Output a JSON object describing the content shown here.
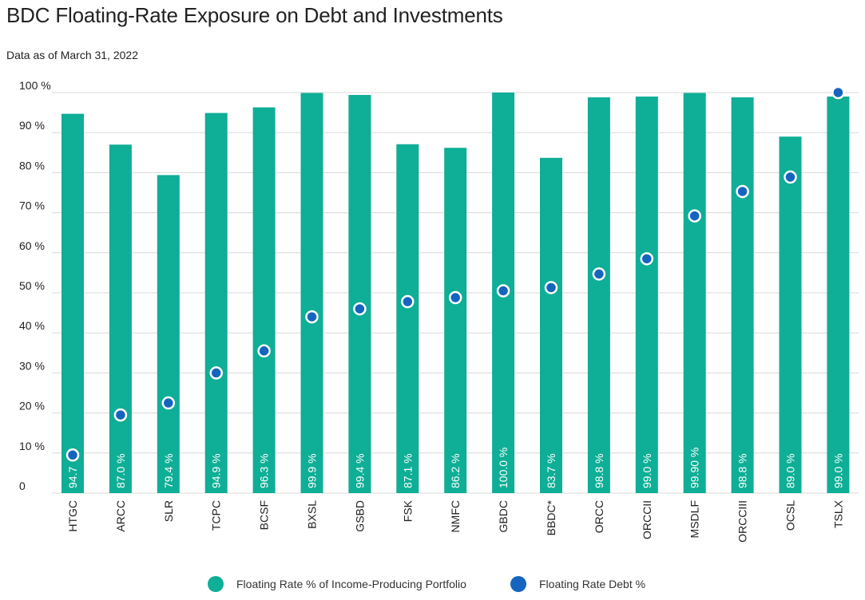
{
  "title": "BDC Floating-Rate Exposure on Debt and Investments",
  "subtitle": "Data as of March 31, 2022",
  "colors": {
    "bar": "#0fae96",
    "dot": "#1565c0",
    "grid": "#d9d9d9"
  },
  "legend": [
    {
      "label": "Floating Rate % of Income-Producing Portfolio",
      "color": "#0fae96"
    },
    {
      "label": "Floating Rate Debt %",
      "color": "#1565c0"
    }
  ],
  "chart_data": {
    "type": "bar",
    "title": "BDC Floating-Rate Exposure on Debt and Investments",
    "subtitle": "Data as of March 31, 2022",
    "categories": [
      "HTGC",
      "ARCC",
      "SLR",
      "TCPC",
      "BCSF",
      "BXSL",
      "GSBD",
      "FSK",
      "NMFC",
      "GBDC",
      "BBDC*",
      "ORCC",
      "ORCCII",
      "MSDLF",
      "ORCCIII",
      "OCSL",
      "TSLX"
    ],
    "series": [
      {
        "name": "Floating Rate % of Income-Producing Portfolio",
        "type": "bar",
        "values": [
          94.7,
          87.0,
          79.4,
          94.9,
          96.3,
          99.9,
          99.4,
          87.1,
          86.2,
          100.0,
          83.7,
          98.8,
          99.0,
          99.9,
          98.8,
          89.0,
          99.0
        ],
        "labels": [
          "94.7",
          "87.0 %",
          "79.4 %",
          "94.9 %",
          "96.3 %",
          "99.9 %",
          "99.4 %",
          "87.1 %",
          "86.2 %",
          "100.0 %",
          "83.7 %",
          "98.8 %",
          "99.0 %",
          "99.90 %",
          "98.8 %",
          "89.0 %",
          "99.0 %"
        ]
      },
      {
        "name": "Floating Rate Debt %",
        "type": "scatter",
        "values": [
          9.5,
          19.5,
          22.5,
          30.0,
          35.5,
          44.0,
          46.0,
          47.8,
          48.8,
          50.5,
          51.3,
          54.7,
          58.5,
          69.2,
          75.3,
          78.9,
          100.0
        ]
      }
    ],
    "yticks": [
      "0",
      "10 %",
      "20 %",
      "30 %",
      "40 %",
      "50 %",
      "60 %",
      "70 %",
      "80 %",
      "90 %",
      "100 %"
    ],
    "ylim": [
      0,
      100
    ],
    "xlabel": "",
    "ylabel": "",
    "legend_position": "bottom-center",
    "grid": true
  }
}
